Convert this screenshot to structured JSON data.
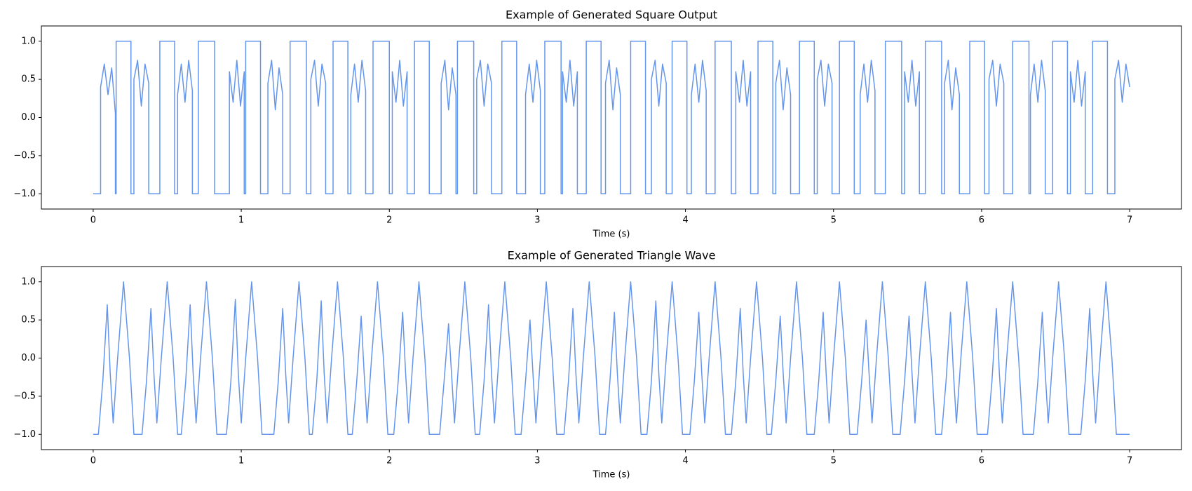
{
  "chart_data": [
    {
      "type": "line",
      "title": "Example of Generated Square Output",
      "xlabel": "Time (s)",
      "color": "#6495ed",
      "xlim": [
        -0.35,
        7.35
      ],
      "ylim": [
        -1.2,
        1.2
      ],
      "xticks": [
        0,
        1,
        2,
        3,
        4,
        5,
        6,
        7
      ],
      "yticks": [
        {
          "value": -1.0,
          "label": "−1.0"
        },
        {
          "value": -0.5,
          "label": "−0.5"
        },
        {
          "value": 0.0,
          "label": "0.0"
        },
        {
          "value": 0.5,
          "label": "0.5"
        },
        {
          "value": 1.0,
          "label": "1.0"
        }
      ],
      "x": [
        0,
        0.05,
        0.05,
        0.075,
        0.1,
        0.125,
        0.15,
        0.15,
        0.155,
        0.155,
        0.255,
        0.255,
        0.275,
        0.275,
        0.3,
        0.325,
        0.35,
        0.375,
        0.375,
        0.45,
        0.45,
        0.55,
        0.55,
        0.57,
        0.57,
        0.595,
        0.62,
        0.645,
        0.67,
        0.67,
        0.71,
        0.71,
        0.82,
        0.82,
        0.92,
        0.92,
        0.945,
        0.97,
        0.995,
        1.02,
        1.02,
        1.03,
        1.03,
        1.13,
        1.13,
        1.18,
        1.18,
        1.205,
        1.23,
        1.255,
        1.28,
        1.28,
        1.33,
        1.33,
        1.44,
        1.44,
        1.47,
        1.47,
        1.495,
        1.52,
        1.545,
        1.57,
        1.57,
        1.62,
        1.62,
        1.72,
        1.72,
        1.74,
        1.74,
        1.765,
        1.79,
        1.815,
        1.84,
        1.84,
        1.89,
        1.89,
        2,
        2,
        2.02,
        2.02,
        2.045,
        2.07,
        2.095,
        2.12,
        2.12,
        2.17,
        2.17,
        2.27,
        2.27,
        2.35,
        2.35,
        2.375,
        2.4,
        2.425,
        2.45,
        2.45,
        2.46,
        2.46,
        2.57,
        2.57,
        2.59,
        2.59,
        2.615,
        2.64,
        2.665,
        2.69,
        2.69,
        2.76,
        2.76,
        2.86,
        2.86,
        2.92,
        2.92,
        2.945,
        2.97,
        2.995,
        3.02,
        3.02,
        3.05,
        3.05,
        3.16,
        3.16,
        3.17,
        3.17,
        3.195,
        3.22,
        3.245,
        3.27,
        3.27,
        3.33,
        3.33,
        3.43,
        3.43,
        3.46,
        3.46,
        3.485,
        3.51,
        3.535,
        3.56,
        3.56,
        3.63,
        3.63,
        3.73,
        3.73,
        3.77,
        3.77,
        3.795,
        3.82,
        3.845,
        3.87,
        3.87,
        3.91,
        3.91,
        4.01,
        4.01,
        4.04,
        4.04,
        4.065,
        4.09,
        4.115,
        4.14,
        4.14,
        4.2,
        4.2,
        4.31,
        4.31,
        4.34,
        4.34,
        4.365,
        4.39,
        4.415,
        4.44,
        4.44,
        4.49,
        4.49,
        4.59,
        4.59,
        4.61,
        4.61,
        4.635,
        4.66,
        4.685,
        4.71,
        4.71,
        4.77,
        4.77,
        4.87,
        4.87,
        4.89,
        4.89,
        4.915,
        4.94,
        4.965,
        4.99,
        4.99,
        5.04,
        5.04,
        5.14,
        5.14,
        5.18,
        5.18,
        5.205,
        5.23,
        5.255,
        5.28,
        5.28,
        5.35,
        5.35,
        5.46,
        5.46,
        5.48,
        5.48,
        5.505,
        5.53,
        5.555,
        5.58,
        5.58,
        5.62,
        5.62,
        5.73,
        5.73,
        5.75,
        5.75,
        5.775,
        5.8,
        5.825,
        5.85,
        5.85,
        5.92,
        5.92,
        6.02,
        6.02,
        6.05,
        6.05,
        6.075,
        6.1,
        6.125,
        6.15,
        6.15,
        6.21,
        6.21,
        6.32,
        6.32,
        6.33,
        6.33,
        6.355,
        6.38,
        6.405,
        6.43,
        6.43,
        6.48,
        6.48,
        6.58,
        6.58,
        6.6,
        6.6,
        6.625,
        6.65,
        6.675,
        6.7,
        6.7,
        6.75,
        6.75,
        6.85,
        6.85,
        6.9,
        6.9,
        6.925,
        6.95,
        6.975,
        7
      ],
      "values": [
        -1,
        -1,
        0.4,
        0.7,
        0.3,
        0.65,
        0.05,
        -1,
        -1,
        1,
        1,
        -1,
        -1,
        0.5,
        0.75,
        0.15,
        0.7,
        0.45,
        -1,
        -1,
        1,
        1,
        -1,
        -1,
        0.3,
        0.7,
        0.2,
        0.75,
        0.35,
        -1,
        -1,
        1,
        1,
        -1,
        -1,
        0.6,
        0.2,
        0.75,
        0.15,
        0.6,
        -1,
        -1,
        1,
        1,
        -1,
        -1,
        0.45,
        0.75,
        0.1,
        0.65,
        0.3,
        -1,
        -1,
        1,
        1,
        -1,
        -1,
        0.5,
        0.75,
        0.15,
        0.7,
        0.45,
        -1,
        -1,
        1,
        1,
        -1,
        -1,
        0.3,
        0.7,
        0.2,
        0.75,
        0.35,
        -1,
        -1,
        1,
        1,
        -1,
        -1,
        0.6,
        0.2,
        0.75,
        0.15,
        0.6,
        -1,
        -1,
        1,
        1,
        -1,
        -1,
        0.45,
        0.75,
        0.1,
        0.65,
        0.3,
        -1,
        -1,
        1,
        1,
        -1,
        -1,
        0.5,
        0.75,
        0.15,
        0.7,
        0.45,
        -1,
        -1,
        1,
        1,
        -1,
        -1,
        0.3,
        0.7,
        0.2,
        0.75,
        0.35,
        -1,
        -1,
        1,
        1,
        -1,
        -1,
        0.6,
        0.2,
        0.75,
        0.15,
        0.6,
        -1,
        -1,
        1,
        1,
        -1,
        -1,
        0.45,
        0.75,
        0.1,
        0.65,
        0.3,
        -1,
        -1,
        1,
        1,
        -1,
        -1,
        0.5,
        0.75,
        0.15,
        0.7,
        0.45,
        -1,
        -1,
        1,
        1,
        -1,
        -1,
        0.3,
        0.7,
        0.2,
        0.75,
        0.35,
        -1,
        -1,
        1,
        1,
        -1,
        -1,
        0.6,
        0.2,
        0.75,
        0.15,
        0.6,
        -1,
        -1,
        1,
        1,
        -1,
        -1,
        0.45,
        0.75,
        0.1,
        0.65,
        0.3,
        -1,
        -1,
        1,
        1,
        -1,
        -1,
        0.5,
        0.75,
        0.15,
        0.7,
        0.45,
        -1,
        -1,
        1,
        1,
        -1,
        -1,
        0.3,
        0.7,
        0.2,
        0.75,
        0.35,
        -1,
        -1,
        1,
        1,
        -1,
        -1,
        0.6,
        0.2,
        0.75,
        0.15,
        0.6,
        -1,
        -1,
        1,
        1,
        -1,
        -1,
        0.45,
        0.75,
        0.1,
        0.65,
        0.3,
        -1,
        -1,
        1,
        1,
        -1,
        -1,
        0.5,
        0.75,
        0.15,
        0.7,
        0.45,
        -1,
        -1,
        1,
        1,
        -1,
        -1,
        0.3,
        0.7,
        0.2,
        0.75,
        0.35,
        -1,
        -1,
        1,
        1,
        -1,
        -1,
        0.6,
        0.2,
        0.75,
        0.15,
        0.6,
        -1,
        -1,
        1,
        1,
        -1,
        -1,
        0.5,
        0.75,
        0.2,
        0.7,
        0.4
      ]
    },
    {
      "type": "line",
      "title": "Example of Generated Triangle Wave",
      "xlabel": "Time (s)",
      "color": "#6495ed",
      "xlim": [
        -0.35,
        7.35
      ],
      "ylim": [
        -1.2,
        1.2
      ],
      "xticks": [
        0,
        1,
        2,
        3,
        4,
        5,
        6,
        7
      ],
      "yticks": [
        {
          "value": -1.0,
          "label": "−1.0"
        },
        {
          "value": -0.5,
          "label": "−0.5"
        },
        {
          "value": 0.0,
          "label": "0.0"
        },
        {
          "value": 0.5,
          "label": "0.5"
        },
        {
          "value": 1.0,
          "label": "1.0"
        }
      ],
      "x": [
        0,
        0.035,
        0.065,
        0.095,
        0.115,
        0.135,
        0.165,
        0.205,
        0.245,
        0.275,
        0.33,
        0.36,
        0.39,
        0.41,
        0.43,
        0.46,
        0.5,
        0.54,
        0.57,
        0.595,
        0.625,
        0.655,
        0.675,
        0.695,
        0.725,
        0.765,
        0.805,
        0.835,
        0.9,
        0.93,
        0.96,
        0.98,
        1,
        1.03,
        1.07,
        1.11,
        1.14,
        1.22,
        1.25,
        1.28,
        1.3,
        1.32,
        1.35,
        1.39,
        1.43,
        1.46,
        1.48,
        1.51,
        1.54,
        1.56,
        1.58,
        1.61,
        1.65,
        1.69,
        1.72,
        1.75,
        1.78,
        1.81,
        1.83,
        1.85,
        1.88,
        1.92,
        1.96,
        1.99,
        2.03,
        2.06,
        2.09,
        2.11,
        2.13,
        2.16,
        2.2,
        2.24,
        2.27,
        2.34,
        2.37,
        2.4,
        2.42,
        2.44,
        2.47,
        2.51,
        2.55,
        2.58,
        2.61,
        2.64,
        2.67,
        2.69,
        2.71,
        2.74,
        2.78,
        2.82,
        2.85,
        2.89,
        2.92,
        2.95,
        2.97,
        2.99,
        3.02,
        3.06,
        3.1,
        3.13,
        3.18,
        3.21,
        3.24,
        3.26,
        3.28,
        3.31,
        3.35,
        3.39,
        3.42,
        3.46,
        3.49,
        3.52,
        3.54,
        3.56,
        3.59,
        3.63,
        3.67,
        3.7,
        3.74,
        3.77,
        3.8,
        3.82,
        3.84,
        3.87,
        3.91,
        3.95,
        3.98,
        4.03,
        4.06,
        4.09,
        4.11,
        4.13,
        4.16,
        4.2,
        4.24,
        4.27,
        4.31,
        4.34,
        4.37,
        4.39,
        4.41,
        4.44,
        4.48,
        4.52,
        4.55,
        4.58,
        4.61,
        4.64,
        4.66,
        4.68,
        4.71,
        4.75,
        4.79,
        4.82,
        4.87,
        4.9,
        4.93,
        4.95,
        4.97,
        5,
        5.04,
        5.08,
        5.11,
        5.16,
        5.19,
        5.22,
        5.24,
        5.26,
        5.29,
        5.33,
        5.37,
        5.4,
        5.45,
        5.48,
        5.51,
        5.53,
        5.55,
        5.58,
        5.62,
        5.66,
        5.69,
        5.73,
        5.76,
        5.79,
        5.81,
        5.83,
        5.86,
        5.9,
        5.94,
        5.97,
        6.04,
        6.07,
        6.1,
        6.12,
        6.14,
        6.17,
        6.21,
        6.25,
        6.28,
        6.35,
        6.38,
        6.41,
        6.43,
        6.45,
        6.48,
        6.52,
        6.56,
        6.59,
        6.67,
        6.7,
        6.73,
        6.75,
        6.77,
        6.8,
        6.84,
        6.88,
        6.91,
        7
      ],
      "values": [
        -1,
        -1,
        -0.3,
        0.7,
        -0.2,
        -0.85,
        0,
        1,
        0,
        -1,
        -1,
        -0.3,
        0.65,
        -0.2,
        -0.85,
        0,
        1,
        0,
        -1,
        -1,
        -0.3,
        0.7,
        -0.2,
        -0.85,
        0,
        1,
        0,
        -1,
        -1,
        -0.3,
        0.77,
        -0.2,
        -0.85,
        0,
        1,
        0,
        -1,
        -1,
        -0.3,
        0.65,
        -0.2,
        -0.85,
        0,
        1,
        0,
        -1,
        -1,
        -0.3,
        0.75,
        -0.2,
        -0.85,
        0,
        1,
        0,
        -1,
        -1,
        -0.3,
        0.55,
        -0.2,
        -0.85,
        0,
        1,
        0,
        -1,
        -1,
        -0.3,
        0.6,
        -0.2,
        -0.85,
        0,
        1,
        0,
        -1,
        -1,
        -0.3,
        0.45,
        -0.2,
        -0.85,
        0,
        1,
        0,
        -1,
        -1,
        -0.3,
        0.7,
        -0.2,
        -0.85,
        0,
        1,
        0,
        -1,
        -1,
        -0.3,
        0.5,
        -0.2,
        -0.85,
        0,
        1,
        0,
        -1,
        -1,
        -0.3,
        0.65,
        -0.2,
        -0.85,
        0,
        1,
        0,
        -1,
        -1,
        -0.3,
        0.6,
        -0.2,
        -0.85,
        0,
        1,
        0,
        -1,
        -1,
        -0.3,
        0.75,
        -0.2,
        -0.85,
        0,
        1,
        0,
        -1,
        -1,
        -0.3,
        0.6,
        -0.2,
        -0.85,
        0,
        1,
        0,
        -1,
        -1,
        -0.3,
        0.65,
        -0.2,
        -0.85,
        0,
        1,
        0,
        -1,
        -1,
        -0.3,
        0.55,
        -0.2,
        -0.85,
        0,
        1,
        0,
        -1,
        -1,
        -0.3,
        0.6,
        -0.2,
        -0.85,
        0,
        1,
        0,
        -1,
        -1,
        -0.3,
        0.5,
        -0.2,
        -0.85,
        0,
        1,
        0,
        -1,
        -1,
        -0.3,
        0.55,
        -0.2,
        -0.85,
        0,
        1,
        0,
        -1,
        -1,
        -0.3,
        0.6,
        -0.2,
        -0.85,
        0,
        1,
        0,
        -1,
        -1,
        -0.3,
        0.65,
        -0.2,
        -0.85,
        0,
        1,
        0,
        -1,
        -1,
        -0.3,
        0.6,
        -0.2,
        -0.85,
        0,
        1,
        0,
        -1,
        -1,
        -0.3,
        0.65,
        -0.2,
        -0.85,
        0,
        1,
        0,
        -1,
        -1
      ]
    }
  ]
}
